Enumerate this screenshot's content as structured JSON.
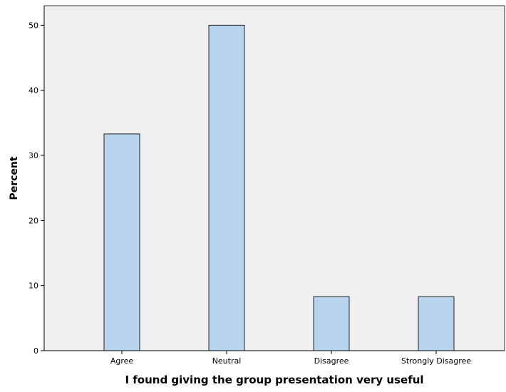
{
  "chart_data": {
    "type": "bar",
    "title": "",
    "xlabel": "I found giving the group presentation very useful",
    "ylabel": "Percent",
    "categories": [
      "Agree",
      "Neutral",
      "Disagree",
      "Strongly Disagree"
    ],
    "values": [
      33.3,
      50.0,
      8.3,
      8.3
    ],
    "ylim": [
      0,
      53
    ],
    "yticks": [
      "0",
      "10",
      "20",
      "30",
      "40",
      "50"
    ],
    "grid": false,
    "legend": "none",
    "colors": {
      "bar_fill": "#b8d4ec",
      "bar_stroke": "#222222",
      "plot_background": "#f0f0f0",
      "plot_border": "#333333"
    }
  }
}
